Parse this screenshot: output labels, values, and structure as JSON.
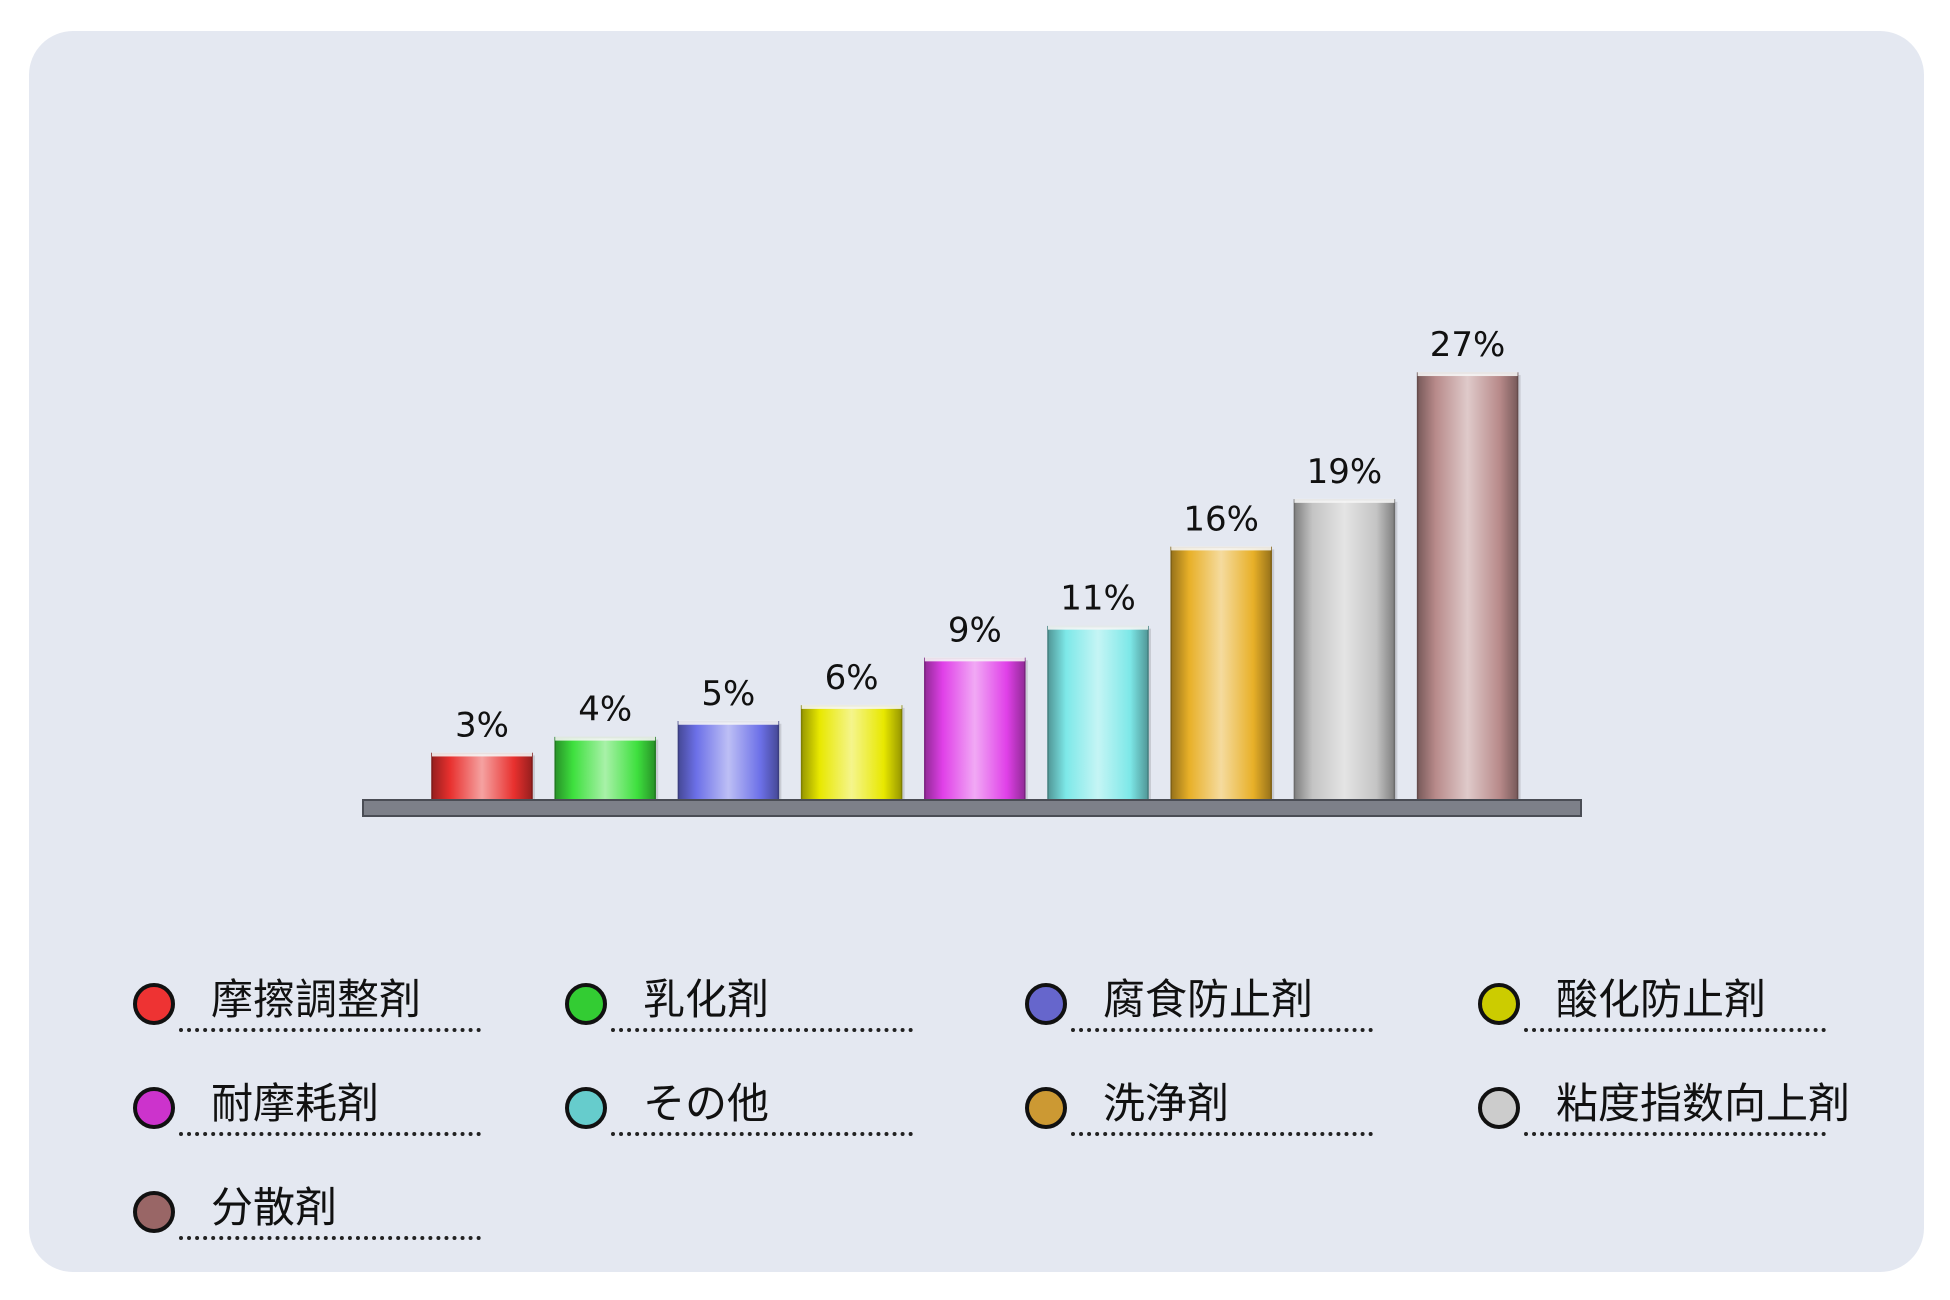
{
  "chart_data": {
    "type": "bar",
    "categories": [
      "摩擦調整剤",
      "乳化剤",
      "腐食防止剤",
      "酸化防止剤",
      "耐摩耗剤",
      "その他",
      "洗浄剤",
      "粘度指数向上剤",
      "分散剤"
    ],
    "values": [
      3,
      4,
      5,
      6,
      9,
      11,
      16,
      19,
      27
    ],
    "value_labels": [
      "3%",
      "4%",
      "5%",
      "6%",
      "9%",
      "11%",
      "16%",
      "19%",
      "27%"
    ],
    "colors": [
      "#e8302e",
      "#3ee03e",
      "#6c70e8",
      "#e8e800",
      "#e040e8",
      "#7de8e8",
      "#e8b028",
      "#c4c4c4",
      "#b88a8a"
    ],
    "legend_colors": [
      "#ee3333",
      "#33cc33",
      "#6666cc",
      "#cccc00",
      "#cc33cc",
      "#66cccc",
      "#cc9933",
      "#cccccc",
      "#996666"
    ],
    "unit": "%",
    "ylim": [
      0,
      27
    ],
    "grid": false,
    "legend_position": "bottom"
  }
}
